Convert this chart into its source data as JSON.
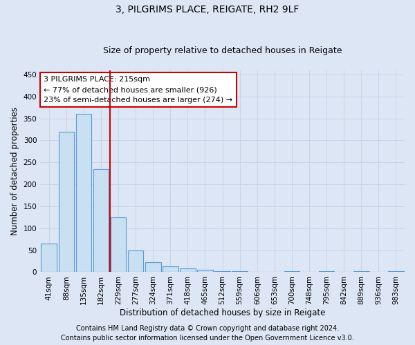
{
  "title": "3, PILGRIMS PLACE, REIGATE, RH2 9LF",
  "subtitle": "Size of property relative to detached houses in Reigate",
  "xlabel": "Distribution of detached houses by size in Reigate",
  "ylabel": "Number of detached properties",
  "categories": [
    "41sqm",
    "88sqm",
    "135sqm",
    "182sqm",
    "229sqm",
    "277sqm",
    "324sqm",
    "371sqm",
    "418sqm",
    "465sqm",
    "512sqm",
    "559sqm",
    "606sqm",
    "653sqm",
    "700sqm",
    "748sqm",
    "795sqm",
    "842sqm",
    "889sqm",
    "936sqm",
    "983sqm"
  ],
  "values": [
    65,
    320,
    360,
    235,
    125,
    50,
    23,
    13,
    8,
    5,
    3,
    2,
    0,
    0,
    3,
    0,
    3,
    0,
    3,
    0,
    2
  ],
  "bar_color": "#c9dff2",
  "bar_edge_color": "#5b9bd5",
  "vline_x": 3.5,
  "vline_color": "#cc0000",
  "annotation_text": "3 PILGRIMS PLACE: 215sqm\n← 77% of detached houses are smaller (926)\n23% of semi-detached houses are larger (274) →",
  "annotation_box_facecolor": "#ffffff",
  "annotation_box_edgecolor": "#cc0000",
  "ylim": [
    0,
    460
  ],
  "yticks": [
    0,
    50,
    100,
    150,
    200,
    250,
    300,
    350,
    400,
    450
  ],
  "grid_color": "#c8d4e8",
  "bg_color": "#dce6f5",
  "plot_bg_color": "#dce6f5",
  "footer_line1": "Contains HM Land Registry data © Crown copyright and database right 2024.",
  "footer_line2": "Contains public sector information licensed under the Open Government Licence v3.0.",
  "title_fontsize": 10,
  "subtitle_fontsize": 9,
  "axis_label_fontsize": 8.5,
  "tick_fontsize": 7.5,
  "annotation_fontsize": 8,
  "footer_fontsize": 7
}
